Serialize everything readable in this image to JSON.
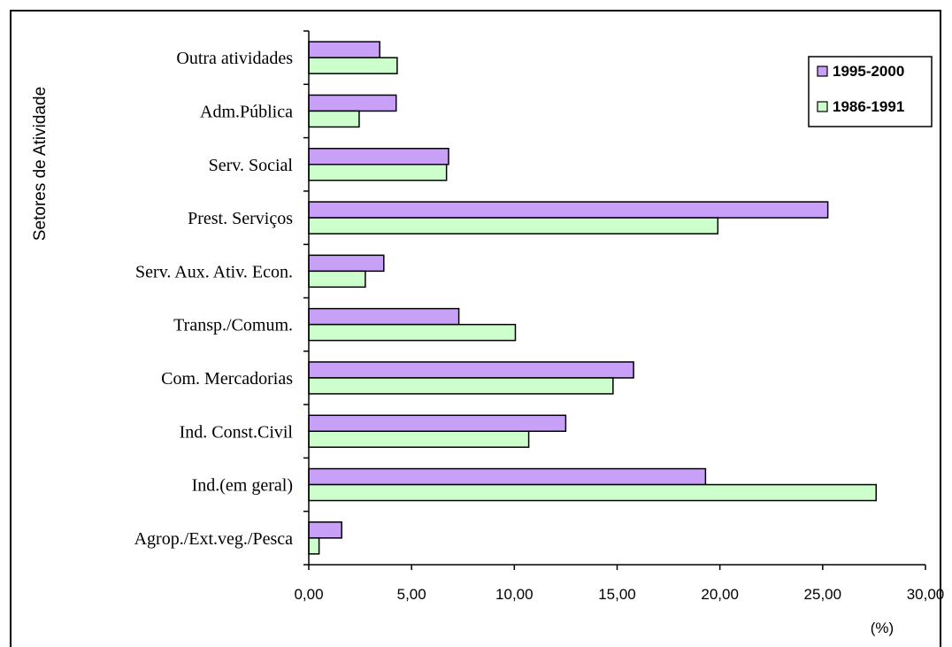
{
  "chart_data": {
    "type": "bar",
    "orientation": "horizontal",
    "ylabel": "Setores de Atividade",
    "xunit": "(%)",
    "xlim": [
      0,
      30
    ],
    "xticks": [
      "0,00",
      "5,00",
      "10,00",
      "15,00",
      "20,00",
      "25,00",
      "30,00"
    ],
    "grid": false,
    "legend_position": "top-right",
    "categories": [
      "Outra atividades",
      "Adm.Pública",
      "Serv. Social",
      "Prest. Serviços",
      "Serv. Aux. Ativ. Econ.",
      "Transp./Comum.",
      "Com. Mercadorias",
      "Ind. Const.Civil",
      "Ind.(em geral)",
      "Agrop./Ext.veg./Pesca"
    ],
    "series": [
      {
        "name": "1995-2000",
        "color": "#c8a0f8",
        "values": [
          3.45,
          4.25,
          6.8,
          25.25,
          3.65,
          7.3,
          15.8,
          12.5,
          19.3,
          1.6
        ]
      },
      {
        "name": "1986-1991",
        "color": "#ccffcc",
        "values": [
          4.3,
          2.45,
          6.7,
          19.9,
          2.75,
          10.05,
          14.8,
          10.7,
          27.6,
          0.5
        ]
      }
    ]
  }
}
